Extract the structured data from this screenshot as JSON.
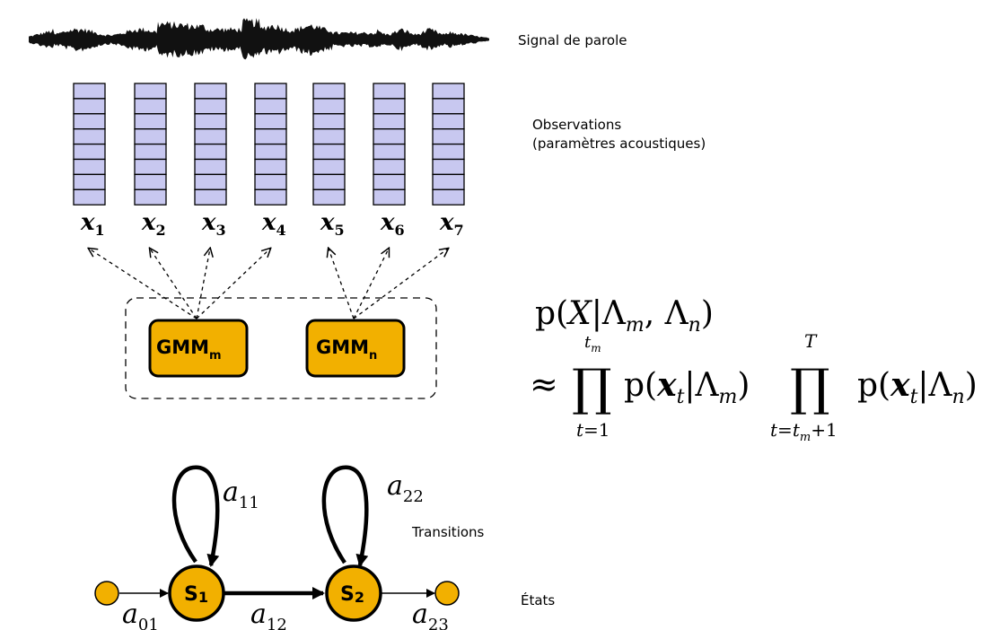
{
  "labels": {
    "signal": "Signal de parole",
    "observations_line1": "Observations",
    "observations_line2": "(paramètres acoustiques)",
    "transitions": "Transitions",
    "states": "États"
  },
  "observations": [
    "x1",
    "x2",
    "x3",
    "x4",
    "x5",
    "x6",
    "x7"
  ],
  "models": [
    {
      "name": "GMM",
      "sub": "m"
    },
    {
      "name": "GMM",
      "sub": "n"
    }
  ],
  "states": [
    {
      "name": "S",
      "sub": "1"
    },
    {
      "name": "S",
      "sub": "2"
    }
  ],
  "transitions": [
    {
      "name": "a",
      "sub": "11"
    },
    {
      "name": "a",
      "sub": "22"
    },
    {
      "name": "a",
      "sub": "01"
    },
    {
      "name": "a",
      "sub": "12"
    },
    {
      "name": "a",
      "sub": "23"
    }
  ],
  "equation": {
    "line1": "p(X|Λm, Λn)",
    "line2": "≈ ∏ p(xt|Λm) ∏ p(xt|Λn)",
    "prod1_lower": "t=1",
    "prod1_upper": "tm",
    "prod2_lower": "t=tm+1",
    "prod2_upper": "T"
  },
  "colors": {
    "frame_fill": "#c8c8f0",
    "node_fill": "#f2b000",
    "stroke": "#000000"
  }
}
